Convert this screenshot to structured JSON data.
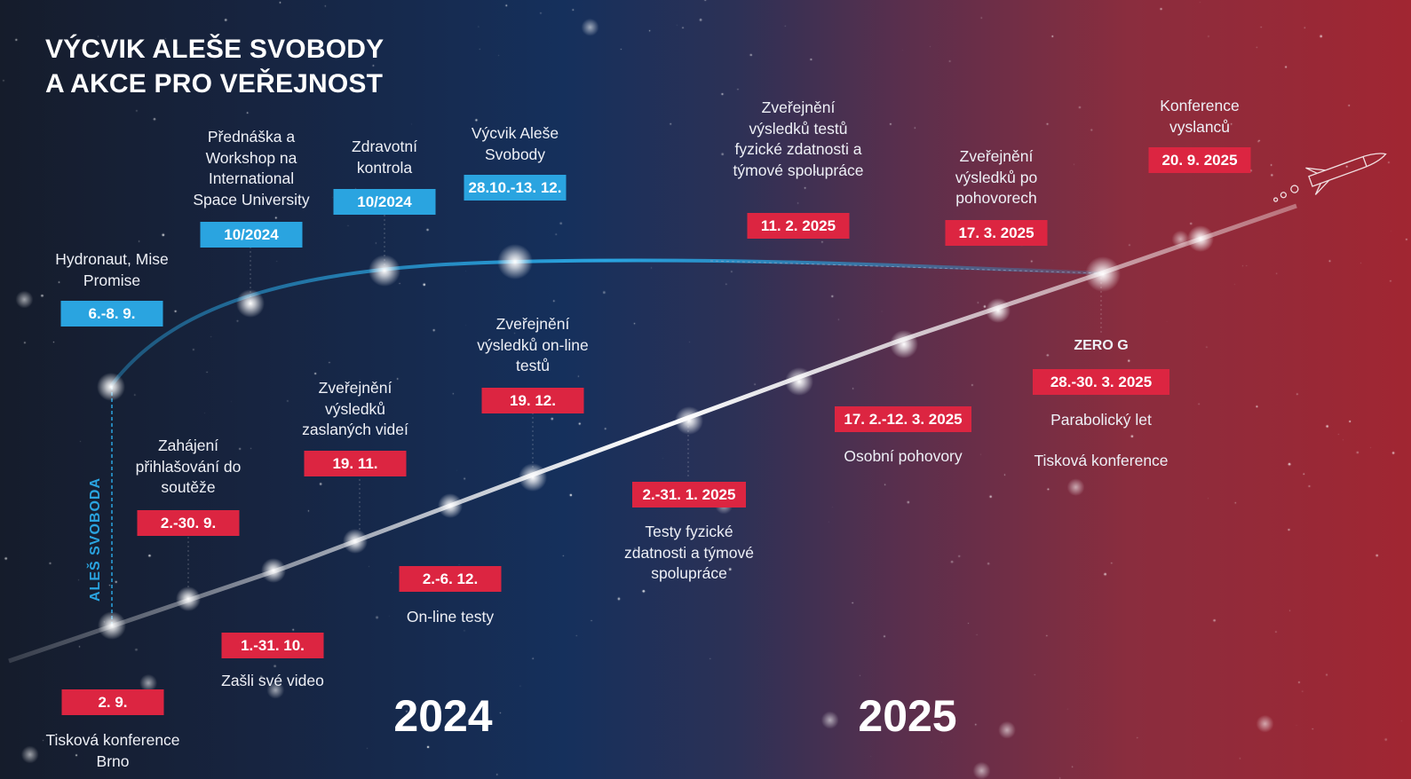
{
  "title": {
    "line1": "VÝCVIK ALEŠE SVOBODY",
    "line2": "A AKCE PRO VEŘEJNOST"
  },
  "side_label": "ALEŠ SVOBODA",
  "years": {
    "left": "2024",
    "right": "2025"
  },
  "colors": {
    "blue_tag": "#2aa4e0",
    "red_tag": "#dc2541",
    "background_left": "#151c2b",
    "background_right": "#a12632"
  },
  "blue_events": [
    {
      "date": "6.-8. 9.",
      "label": "Hydronaut, Mise Promise"
    },
    {
      "date": "10/2024",
      "label": "Přednáška a Workshop na International Space University"
    },
    {
      "date": "10/2024",
      "label": "Zdravotní kontrola"
    },
    {
      "date": "28.10.-13. 12.",
      "label": "Výcvik Aleše Svobody"
    }
  ],
  "red_events": [
    {
      "date": "2. 9.",
      "label": "Tisková konference Brno"
    },
    {
      "date": "2.-30. 9.",
      "label": "Zahájení přihlašování do soutěže"
    },
    {
      "date": "1.-31. 10.",
      "label": "Zašli své video"
    },
    {
      "date": "19. 11.",
      "label": "Zveřejnění výsledků zaslaných videí"
    },
    {
      "date": "2.-6. 12.",
      "label": "On-line testy"
    },
    {
      "date": "19. 12.",
      "label": "Zveřejnění výsledků on-line testů"
    },
    {
      "date": "2.-31. 1. 2025",
      "label": "Testy fyzické zdatnosti a týmové spolupráce"
    },
    {
      "date": "11. 2. 2025",
      "label": "Zveřejnění výsledků testů fyzické zdatnosti a týmové spolupráce"
    },
    {
      "date": "17. 2.-12. 3. 2025",
      "label": "Osobní pohovory"
    },
    {
      "date": "17. 3. 2025",
      "label": "Zveřejnění výsledků po pohovorech"
    },
    {
      "date": "28.-30. 3. 2025",
      "title": "ZERO G",
      "label": "Parabolický let",
      "label2": "Tisková konference"
    },
    {
      "date": "20. 9. 2025",
      "label": "Konference vyslanců"
    }
  ],
  "icons": {
    "end": "rocket-icon",
    "node": "glow-dot-icon"
  }
}
